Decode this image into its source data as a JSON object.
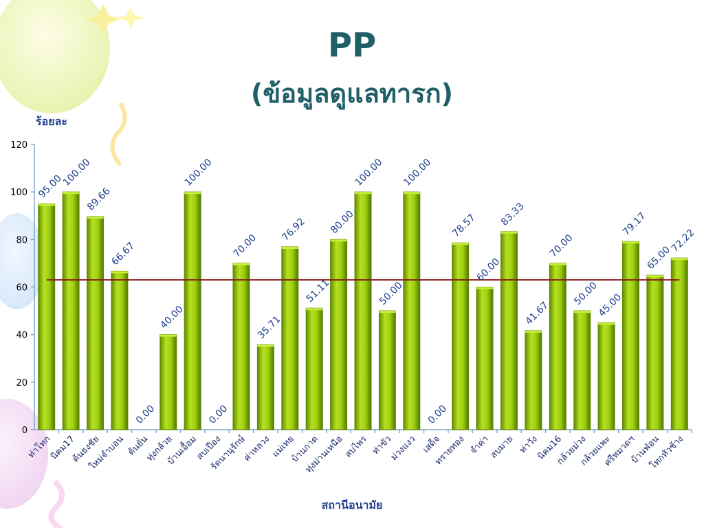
{
  "slide": {
    "title": "PP",
    "subtitle": "(ข้อมูลดูแลทารก)"
  },
  "colors": {
    "title": "#1f5f66",
    "bar": "#8fbf0a",
    "bar_dark": "#5f8a00",
    "average_line": "#8b1a1a",
    "axis_text": "#1f3f8f"
  },
  "chart_data": {
    "type": "bar",
    "title": "",
    "ylabel": "ร้อยละ",
    "xlabel": "สถานีอนามัย",
    "ylim": [
      0,
      120
    ],
    "yticks": [
      0,
      20,
      40,
      60,
      80,
      100,
      120
    ],
    "grid": false,
    "legend": "none",
    "categories": [
      "ท่าโทก",
      "นิคม17",
      "ต้นธงชัย",
      "ใหม่จำบอน",
      "ต้นยั่น",
      "ทุ่งกล้วย",
      "บ้านเอื้อม",
      "สบเปือง",
      "รัตนานุรักษ์",
      "ค่าหลวง",
      "แม่เทย",
      "บ้านกาด",
      "ทุ่งม่านเหนือ",
      "สบไพร",
      "ท่าขัว",
      "ม่วงแงว",
      "เสด็จ",
      "ทรายทอง",
      "จำค่า",
      "สบมาย",
      "ท่าวัง",
      "นิคม16",
      "กล้วยม่วง",
      "กล้วยแพะ",
      "ศรีหมวดฯ",
      "บ้านฟ่อน",
      "โทกหัวช้าง"
    ],
    "value_labels": [
      "95.00",
      "100.00",
      "89.66",
      "66.67",
      "0.00",
      "40.00",
      "100.00",
      "0.00",
      "70.00",
      "35.71",
      "76.92",
      "51.11",
      "80.00",
      "100.00",
      "50.00",
      "100.00",
      "0.00",
      "78.57",
      "60.00",
      "83.33",
      "41.67",
      "70.00",
      "50.00",
      "45.00",
      "79.17",
      "65.00",
      "72.22"
    ],
    "values": [
      95.0,
      100.0,
      89.66,
      66.67,
      0.0,
      40.0,
      100.0,
      0.0,
      70.0,
      35.71,
      76.92,
      51.11,
      80.0,
      100.0,
      50.0,
      100.0,
      0.0,
      78.57,
      60.0,
      83.33,
      41.67,
      70.0,
      50.0,
      45.0,
      79.17,
      65.0,
      72.22
    ],
    "average_line_value": 63
  }
}
